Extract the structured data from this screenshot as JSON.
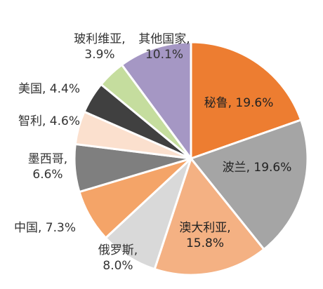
{
  "chart_data": {
    "type": "pie",
    "title": "",
    "slices": [
      {
        "label": "秘鲁",
        "value": 19.6,
        "display": "秘鲁, 19.6%",
        "color": "#ED7D31"
      },
      {
        "label": "波兰",
        "value": 19.6,
        "display": "波兰, 19.6%",
        "color": "#A5A5A5"
      },
      {
        "label": "澳大利亚",
        "value": 15.8,
        "display_lines": [
          "澳大利亚,",
          "15.8%"
        ],
        "color": "#F4B183"
      },
      {
        "label": "俄罗斯",
        "value": 8.0,
        "display_lines": [
          "俄罗斯,",
          "8.0%"
        ],
        "color": "#D9D9D9"
      },
      {
        "label": "中国",
        "value": 7.3,
        "display": "中国, 7.3%",
        "color": "#F4A468"
      },
      {
        "label": "墨西哥",
        "value": 6.6,
        "display_lines": [
          "墨西哥,",
          "6.6%"
        ],
        "color": "#7F7F7F"
      },
      {
        "label": "智利",
        "value": 4.6,
        "display": "智利, 4.6%",
        "color": "#FBE0CE"
      },
      {
        "label": "美国",
        "value": 4.4,
        "display": "美国, 4.4%",
        "color": "#404040"
      },
      {
        "label": "玻利维亚",
        "value": 3.9,
        "display_lines": [
          "玻利维亚,",
          "3.9%"
        ],
        "color": "#C5DD9E"
      },
      {
        "label": "其他国家",
        "value": 10.1,
        "display_lines": [
          "其他国家,",
          "10.1%"
        ],
        "color": "#A597C4"
      }
    ]
  }
}
